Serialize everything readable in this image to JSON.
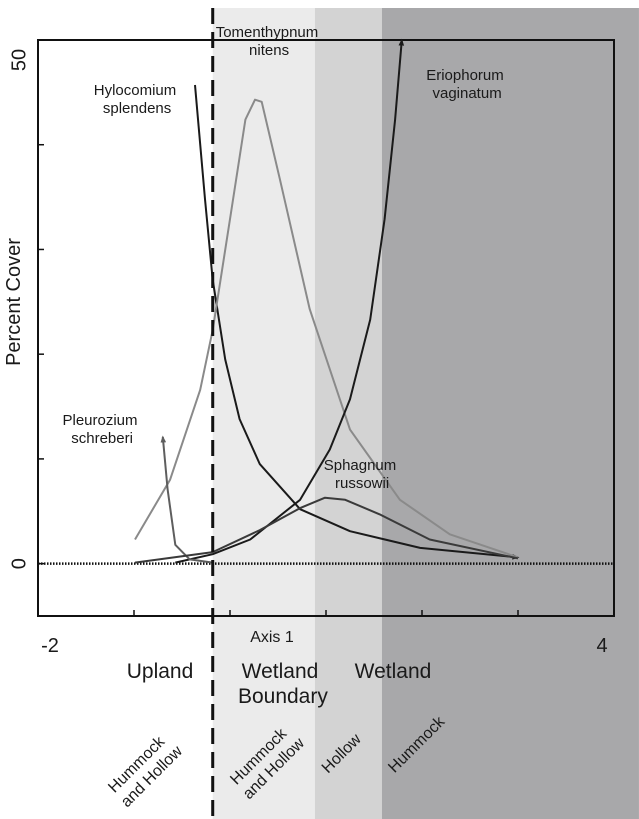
{
  "chart_data": {
    "type": "line",
    "x_label": "Axis 1",
    "y_label": "Percent Cover",
    "xlim": [
      -2,
      4
    ],
    "xticks": [
      -2,
      4
    ],
    "minor_xticks": [
      -1,
      0,
      1,
      2,
      3
    ],
    "ylim": [
      -5,
      50
    ],
    "yticks": [
      0,
      50
    ],
    "minor_yticks": [
      10,
      20,
      30,
      40
    ],
    "boundary": -0.18,
    "zones": [
      {
        "label": "Upland",
        "units": [
          {
            "label": "Hummock and Hollow"
          }
        ]
      },
      {
        "label": "Wetland Boundary",
        "units": [
          {
            "label": "Hummock and Hollow",
            "from": -0.18,
            "to": 0.885,
            "color": "#ebebeb"
          }
        ]
      },
      {
        "label": "Wetland",
        "units": [
          {
            "label": "Hollow",
            "from": 0.885,
            "to": 1.583,
            "color": "#d3d3d3"
          },
          {
            "label": "Hummock",
            "from": 1.583,
            "to": 4.26,
            "color": "#a8a8aa"
          }
        ]
      }
    ],
    "series": [
      {
        "name": "Hylocomium splendens",
        "color": "#1a1a1a",
        "arrow": true,
        "x": [
          -0.365,
          -0.26,
          -0.18,
          -0.05,
          0.1,
          0.31,
          0.73,
          1.25,
          1.98,
          3.0
        ],
        "values": [
          45.7,
          34.8,
          27.1,
          19.5,
          13.8,
          9.5,
          5.2,
          3.1,
          1.5,
          0.6
        ]
      },
      {
        "name": "Tomenthypnum nitens",
        "color": "#8a8a8a",
        "arrow": false,
        "x": [
          -0.99,
          -0.625,
          -0.31,
          -0.18,
          0,
          0.16,
          0.26,
          0.33,
          0.52,
          0.83,
          1.25,
          1.77,
          2.29,
          3.0
        ],
        "values": [
          2.3,
          8.0,
          16.6,
          22.3,
          32.9,
          42.4,
          44.3,
          44.1,
          36.7,
          24.3,
          12.8,
          6.1,
          2.8,
          0.6
        ]
      },
      {
        "name": "Eriophorum vaginatum",
        "color": "#1a1a1a",
        "arrow": true,
        "x": [
          -0.57,
          -0.18,
          0.21,
          0.73,
          1.04,
          1.25,
          1.46,
          1.61,
          1.72,
          1.79
        ],
        "values": [
          0.1,
          0.9,
          2.3,
          6.1,
          10.9,
          15.7,
          23.3,
          32.9,
          42.4,
          50.0
        ]
      },
      {
        "name": "Pleurozium schreberi",
        "color": "#5e5e5e",
        "arrow": true,
        "x": [
          -0.18,
          -0.42,
          -0.57,
          -0.65,
          -0.7
        ],
        "values": [
          0.1,
          0.4,
          1.8,
          7.1,
          12.1
        ]
      },
      {
        "name": "Sphagnum russowii",
        "color": "#3a3a3a",
        "arrow": false,
        "x": [
          -0.99,
          -0.18,
          0.31,
          0.73,
          0.99,
          1.2,
          1.56,
          2.08,
          3.0
        ],
        "values": [
          0.1,
          1.1,
          3.2,
          5.3,
          6.3,
          6.1,
          4.7,
          2.3,
          0.5
        ]
      }
    ]
  }
}
